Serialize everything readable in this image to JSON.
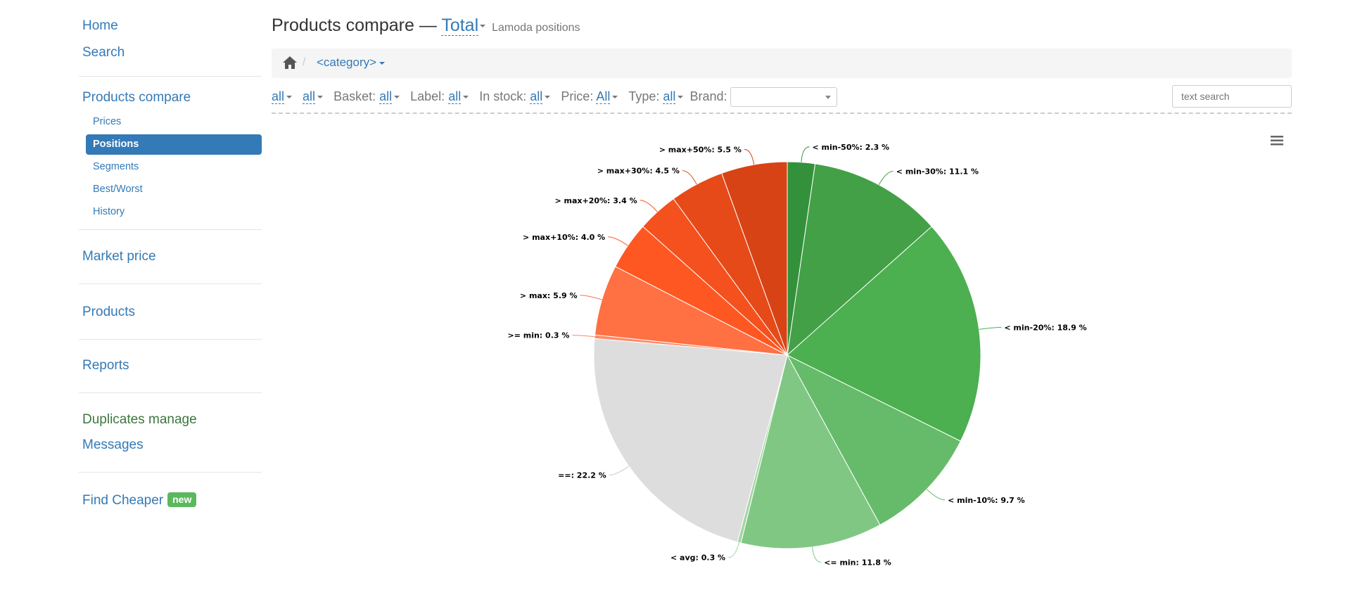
{
  "sidebar": {
    "home": "Home",
    "search": "Search",
    "products_compare": "Products compare",
    "sub_items": [
      "Prices",
      "Positions",
      "Segments",
      "Best/Worst",
      "History"
    ],
    "market_price": "Market price",
    "products": "Products",
    "reports": "Reports",
    "duplicates": "Duplicates manage",
    "messages": "Messages",
    "find_cheaper": "Find Cheaper",
    "new_badge": "new"
  },
  "header": {
    "title": "Products compare —",
    "dropdown": "Total",
    "subtitle": "Lamoda positions"
  },
  "breadcrumb": {
    "category": "<category>"
  },
  "filters": {
    "f1": "all",
    "f2": "all",
    "basket_label": "Basket:",
    "basket": "all",
    "label_label": "Label:",
    "label": "all",
    "instock_label": "In stock:",
    "instock": "all",
    "price_label": "Price:",
    "price": "All",
    "type_label": "Type:",
    "type": "all",
    "brand_label": "Brand:",
    "search_placeholder": "text search"
  },
  "colors": {
    "accent": "#337ab7",
    "active_bg": "#337ab7",
    "badge_green": "#5cb85c"
  },
  "chart_data": {
    "type": "pie",
    "title": "",
    "slices": [
      {
        "label": "< min-50%",
        "value": 2.3,
        "color": "#34913b"
      },
      {
        "label": "< min-30%",
        "value": 11.1,
        "color": "#43a047"
      },
      {
        "label": "< min-20%",
        "value": 18.9,
        "color": "#4caf50"
      },
      {
        "label": "< min-10%",
        "value": 9.7,
        "color": "#66bb6a"
      },
      {
        "label": "<= min",
        "value": 11.8,
        "color": "#81c784"
      },
      {
        "label": "< avg",
        "value": 0.3,
        "color": "#a5d6a7"
      },
      {
        "label": "==",
        "value": 22.2,
        "color": "#dddddd"
      },
      {
        "label": ">= min",
        "value": 0.3,
        "color": "#ff8a65"
      },
      {
        "label": "> max",
        "value": 5.9,
        "color": "#ff7043"
      },
      {
        "label": "> max+10%",
        "value": 4.0,
        "color": "#ff5722"
      },
      {
        "label": "> max+20%",
        "value": 3.4,
        "color": "#f4511e"
      },
      {
        "label": "> max+30%",
        "value": 4.5,
        "color": "#e64a19"
      },
      {
        "label": "> max+50%",
        "value": 5.5,
        "color": "#d84315"
      }
    ]
  }
}
